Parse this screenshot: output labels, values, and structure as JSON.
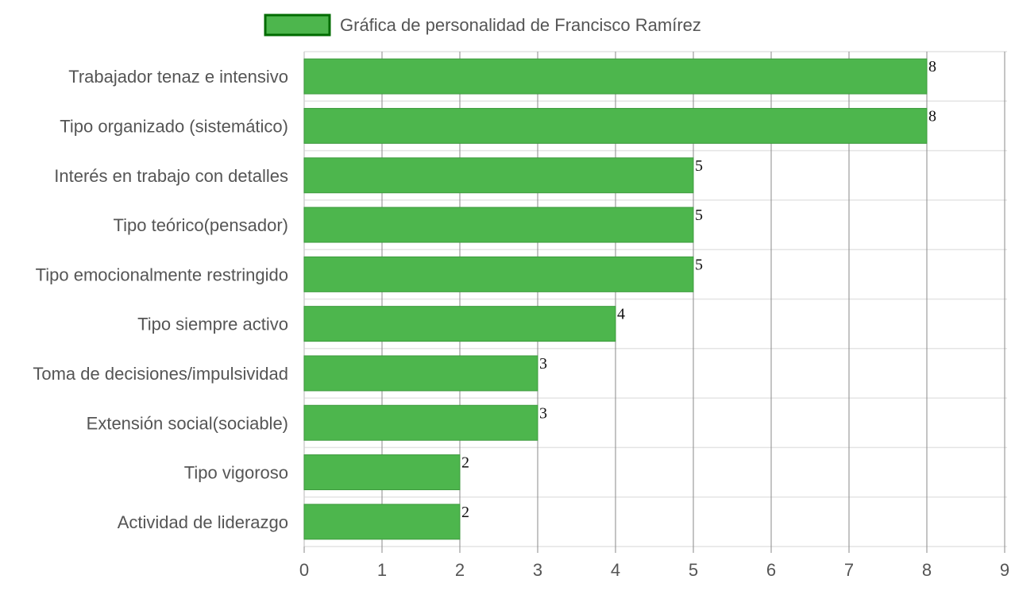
{
  "chart_data": {
    "type": "bar",
    "orientation": "horizontal",
    "categories": [
      "Trabajador tenaz e intensivo",
      "Tipo organizado (sistemático)",
      "Interés en trabajo con detalles",
      "Tipo teórico(pensador)",
      "Tipo emocionalmente restringido",
      "Tipo siempre activo",
      "Toma de decisiones/impulsividad",
      "Extensión social(sociable)",
      "Tipo vigoroso",
      "Actividad de liderazgo"
    ],
    "series": [
      {
        "name": "Gráfica de personalidad de Francisco Ramírez",
        "values": [
          8,
          8,
          5,
          5,
          5,
          4,
          3,
          3,
          2,
          2
        ]
      }
    ],
    "data_labels": [
      "8",
      "8",
      "5",
      "5",
      "5",
      "4",
      "3",
      "3",
      "2",
      "2"
    ],
    "x_ticks": [
      "0",
      "1",
      "2",
      "3",
      "4",
      "5",
      "6",
      "7",
      "8",
      "9"
    ],
    "xlim": [
      0,
      9
    ],
    "grid": true,
    "legend_position": "top",
    "colors": {
      "bar_fill": "#4db64d",
      "bar_border": "#3c9a3c",
      "legend_fill": "#4db64d",
      "legend_border": "#006b00",
      "vertical_grid": "#8a8a8a",
      "horizontal_grid": "#e4e4e4"
    }
  }
}
